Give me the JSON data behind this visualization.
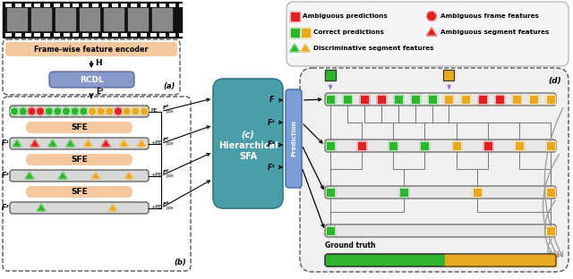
{
  "fig_width": 6.4,
  "fig_height": 3.12,
  "dpi": 100,
  "colors": {
    "red": "#e02020",
    "green": "#2db52d",
    "yellow": "#e8a820",
    "orange_bg": "#f5c9a0",
    "teal": "#4a9eaa",
    "blue_pred": "#7a9fd4",
    "gray_bar": "#d8d8d8",
    "dark": "#333333",
    "purple": "#8855cc",
    "light_gray": "#e8e8e8"
  },
  "e0_circles": [
    "G",
    "G",
    "R",
    "R",
    "G",
    "G",
    "G",
    "G",
    "G",
    "Y",
    "Y",
    "Y",
    "R",
    "Y",
    "Y",
    "Y"
  ],
  "f1_triangles": [
    "G",
    "R",
    "G",
    "G",
    "Y",
    "R",
    "Y",
    "Y"
  ],
  "f2_triangles": [
    "G",
    "G",
    "Y",
    "Y"
  ],
  "f3_triangles": [
    "G",
    "Y"
  ],
  "d_row0": [
    "G",
    "G",
    "R",
    "R",
    "G",
    "G",
    "G",
    "Y",
    "Y",
    "R",
    "R",
    "Y",
    "Y",
    "Y"
  ],
  "d_row1": [
    "G",
    "R",
    "G",
    "G",
    "Y",
    "R",
    "Y",
    "Y"
  ],
  "d_row2": [
    "G",
    "G",
    "Y",
    "Y"
  ],
  "d_row3": [
    "G",
    "Y"
  ]
}
